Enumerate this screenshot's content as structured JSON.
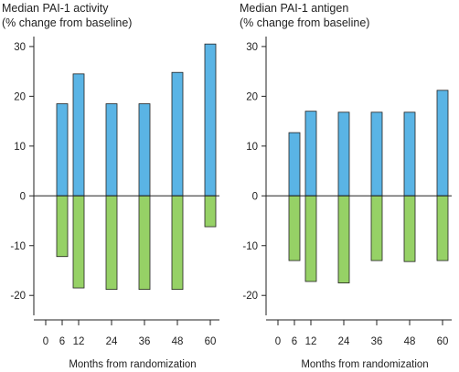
{
  "colors": {
    "positive": "#5ab4e5",
    "negative": "#96d166",
    "axis": "#222222"
  },
  "chart_data": [
    {
      "type": "bar",
      "title_lines": [
        "Median PAI-1 activity",
        "(% change from baseline)"
      ],
      "xlabel": "Months from randomization",
      "ylabel": "",
      "x_ticks": [
        0,
        6,
        12,
        24,
        36,
        48,
        60
      ],
      "y_ticks": [
        30,
        20,
        10,
        0,
        -10,
        -20
      ],
      "ylim": [
        -24,
        32
      ],
      "categories": [
        6,
        12,
        24,
        36,
        48,
        60
      ],
      "series": [
        {
          "values": [
            18.5,
            24.5,
            18.5,
            18.5,
            24.8,
            30.5
          ]
        },
        {
          "values": [
            -12.2,
            -18.5,
            -18.8,
            -18.8,
            -18.8,
            -6.2
          ]
        }
      ]
    },
    {
      "type": "bar",
      "title_lines": [
        "Median PAI-1 antigen",
        "(% change from baseline)"
      ],
      "xlabel": "Months from randomization",
      "ylabel": "",
      "x_ticks": [
        0,
        6,
        12,
        24,
        36,
        48,
        60
      ],
      "y_ticks": [
        30,
        20,
        10,
        0,
        -10,
        -20
      ],
      "ylim": [
        -24,
        32
      ],
      "categories": [
        6,
        12,
        24,
        36,
        48,
        60
      ],
      "series": [
        {
          "values": [
            12.7,
            17.0,
            16.8,
            16.8,
            16.8,
            21.2
          ]
        },
        {
          "values": [
            -13.0,
            -17.2,
            -17.5,
            -13.0,
            -13.2,
            -13.0
          ]
        }
      ]
    }
  ]
}
